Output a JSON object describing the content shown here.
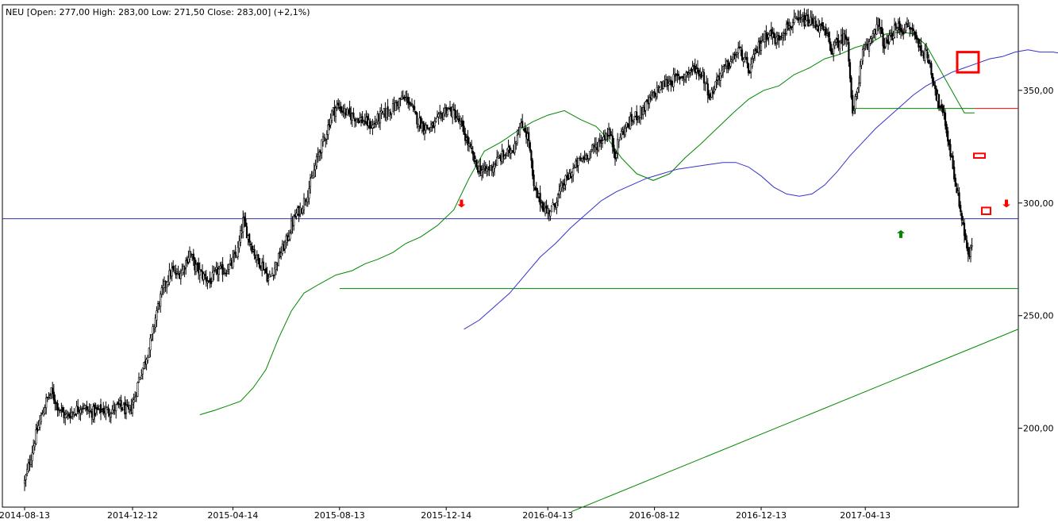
{
  "chart_data": {
    "type": "candlestick",
    "header": "NEU [Open: 277,00  High: 283,00  Low: 271,50  Close: 283,00]  (+2,1%)",
    "ylim": [
      165,
      388
    ],
    "y_ticks": [
      {
        "value": 200,
        "label": "200,00"
      },
      {
        "value": 250,
        "label": "250,00"
      },
      {
        "value": 300,
        "label": "300,00"
      },
      {
        "value": 350,
        "label": "350,00"
      }
    ],
    "x_ticks": [
      {
        "index": 0,
        "label": "2014-08-13"
      },
      {
        "index": 85,
        "label": "2014-12-12"
      },
      {
        "index": 164,
        "label": "2015-04-14"
      },
      {
        "index": 248,
        "label": "2015-08-13"
      },
      {
        "index": 332,
        "label": "2015-12-14"
      },
      {
        "index": 412,
        "label": "2016-04-13"
      },
      {
        "index": 496,
        "label": "2016-08-12"
      },
      {
        "index": 580,
        "label": "2016-12-13"
      },
      {
        "index": 662,
        "label": "2017-04-13"
      }
    ],
    "total_bars": 753,
    "price_anchors": [
      [
        0,
        176
      ],
      [
        3,
        183
      ],
      [
        8,
        195
      ],
      [
        12,
        203
      ],
      [
        17,
        212
      ],
      [
        21,
        216
      ],
      [
        26,
        210
      ],
      [
        32,
        205
      ],
      [
        40,
        208
      ],
      [
        45,
        210
      ],
      [
        52,
        207
      ],
      [
        60,
        208
      ],
      [
        68,
        208
      ],
      [
        75,
        210
      ],
      [
        82,
        207
      ],
      [
        86,
        212
      ],
      [
        90,
        222
      ],
      [
        95,
        230
      ],
      [
        100,
        240
      ],
      [
        104,
        252
      ],
      [
        108,
        260
      ],
      [
        112,
        266
      ],
      [
        116,
        270
      ],
      [
        120,
        268
      ],
      [
        124,
        270
      ],
      [
        130,
        278
      ],
      [
        134,
        272
      ],
      [
        140,
        268
      ],
      [
        146,
        265
      ],
      [
        152,
        270
      ],
      [
        158,
        270
      ],
      [
        163,
        273
      ],
      [
        168,
        279
      ],
      [
        172,
        292
      ],
      [
        178,
        282
      ],
      [
        183,
        275
      ],
      [
        188,
        272
      ],
      [
        192,
        266
      ],
      [
        196,
        270
      ],
      [
        201,
        277
      ],
      [
        206,
        283
      ],
      [
        210,
        290
      ],
      [
        214,
        295
      ],
      [
        218,
        298
      ],
      [
        223,
        305
      ],
      [
        227,
        312
      ],
      [
        232,
        323
      ],
      [
        237,
        330
      ],
      [
        242,
        340
      ],
      [
        246,
        343
      ],
      [
        251,
        341
      ],
      [
        256,
        339
      ],
      [
        262,
        338
      ],
      [
        268,
        336
      ],
      [
        274,
        334
      ],
      [
        279,
        338
      ],
      [
        284,
        340
      ],
      [
        290,
        342
      ],
      [
        296,
        346
      ],
      [
        302,
        346
      ],
      [
        308,
        338
      ],
      [
        314,
        334
      ],
      [
        320,
        333
      ],
      [
        326,
        337
      ],
      [
        332,
        342
      ],
      [
        338,
        340
      ],
      [
        344,
        334
      ],
      [
        350,
        325
      ],
      [
        356,
        316
      ],
      [
        362,
        314
      ],
      [
        368,
        316
      ],
      [
        374,
        320
      ],
      [
        380,
        322
      ],
      [
        385,
        325
      ],
      [
        389,
        333
      ],
      [
        393,
        334
      ],
      [
        397,
        328
      ],
      [
        401,
        306
      ],
      [
        406,
        301
      ],
      [
        411,
        296
      ],
      [
        416,
        298
      ],
      [
        420,
        303
      ],
      [
        425,
        309
      ],
      [
        430,
        313
      ],
      [
        436,
        318
      ],
      [
        442,
        321
      ],
      [
        448,
        324
      ],
      [
        454,
        328
      ],
      [
        460,
        332
      ],
      [
        465,
        322
      ],
      [
        469,
        330
      ],
      [
        474,
        334
      ],
      [
        480,
        338
      ],
      [
        486,
        341
      ],
      [
        492,
        345
      ],
      [
        498,
        350
      ],
      [
        504,
        353
      ],
      [
        512,
        355
      ],
      [
        520,
        357
      ],
      [
        528,
        360
      ],
      [
        534,
        357
      ],
      [
        540,
        347
      ],
      [
        546,
        356
      ],
      [
        552,
        360
      ],
      [
        558,
        364
      ],
      [
        562,
        368
      ],
      [
        566,
        365
      ],
      [
        570,
        358
      ],
      [
        574,
        364
      ],
      [
        580,
        372
      ],
      [
        586,
        376
      ],
      [
        592,
        372
      ],
      [
        598,
        377
      ],
      [
        606,
        380
      ],
      [
        614,
        381
      ],
      [
        622,
        380
      ],
      [
        630,
        376
      ],
      [
        636,
        368
      ],
      [
        640,
        371
      ],
      [
        644,
        373
      ],
      [
        648,
        374
      ],
      [
        652,
        338
      ],
      [
        656,
        352
      ],
      [
        660,
        366
      ],
      [
        664,
        369
      ],
      [
        668,
        376
      ],
      [
        672,
        380
      ],
      [
        676,
        371
      ],
      [
        680,
        371
      ],
      [
        684,
        376
      ],
      [
        688,
        378
      ],
      [
        692,
        377
      ],
      [
        696,
        378
      ],
      [
        700,
        376
      ],
      [
        703,
        372
      ],
      [
        706,
        368
      ],
      [
        709,
        366
      ],
      [
        712,
        364
      ],
      [
        715,
        356
      ],
      [
        718,
        348
      ],
      [
        721,
        342
      ],
      [
        724,
        338
      ],
      [
        727,
        329
      ],
      [
        730,
        319
      ],
      [
        733,
        309
      ],
      [
        736,
        300
      ],
      [
        739,
        290
      ],
      [
        742,
        280
      ],
      [
        744,
        275
      ],
      [
        746,
        282
      ]
    ],
    "ma_fast_anchors": [
      [
        138,
        206
      ],
      [
        150,
        208
      ],
      [
        160,
        210
      ],
      [
        170,
        212
      ],
      [
        180,
        218
      ],
      [
        190,
        226
      ],
      [
        200,
        240
      ],
      [
        210,
        252
      ],
      [
        220,
        260
      ],
      [
        232,
        264
      ],
      [
        245,
        268
      ],
      [
        258,
        270
      ],
      [
        268,
        273
      ],
      [
        278,
        275
      ],
      [
        290,
        278
      ],
      [
        300,
        282
      ],
      [
        312,
        285
      ],
      [
        325,
        290
      ],
      [
        338,
        297
      ],
      [
        350,
        311
      ],
      [
        362,
        323
      ],
      [
        375,
        327
      ],
      [
        388,
        332
      ],
      [
        400,
        336
      ],
      [
        412,
        339
      ],
      [
        425,
        341
      ],
      [
        438,
        337
      ],
      [
        450,
        334
      ],
      [
        460,
        328
      ],
      [
        470,
        320
      ],
      [
        482,
        313
      ],
      [
        495,
        310
      ],
      [
        508,
        313
      ],
      [
        520,
        320
      ],
      [
        532,
        326
      ],
      [
        545,
        333
      ],
      [
        558,
        340
      ],
      [
        570,
        346
      ],
      [
        582,
        350
      ],
      [
        594,
        352
      ],
      [
        606,
        357
      ],
      [
        618,
        360
      ],
      [
        630,
        364
      ],
      [
        642,
        366
      ],
      [
        654,
        369
      ],
      [
        666,
        371
      ],
      [
        678,
        375
      ],
      [
        690,
        376
      ],
      [
        700,
        375
      ],
      [
        710,
        370
      ],
      [
        720,
        360
      ],
      [
        730,
        350
      ],
      [
        740,
        340
      ],
      [
        748,
        340
      ]
    ],
    "ma_slow_anchors": [
      [
        346,
        244
      ],
      [
        358,
        248
      ],
      [
        370,
        254
      ],
      [
        382,
        260
      ],
      [
        394,
        268
      ],
      [
        406,
        276
      ],
      [
        418,
        282
      ],
      [
        430,
        289
      ],
      [
        442,
        295
      ],
      [
        454,
        301
      ],
      [
        466,
        305
      ],
      [
        478,
        308
      ],
      [
        490,
        311
      ],
      [
        502,
        313
      ],
      [
        514,
        315
      ],
      [
        526,
        316
      ],
      [
        538,
        317
      ],
      [
        550,
        318
      ],
      [
        560,
        318
      ],
      [
        570,
        316
      ],
      [
        580,
        312
      ],
      [
        590,
        307
      ],
      [
        600,
        304
      ],
      [
        610,
        303
      ],
      [
        620,
        304
      ],
      [
        630,
        308
      ],
      [
        640,
        314
      ],
      [
        650,
        321
      ],
      [
        660,
        327
      ],
      [
        670,
        333
      ],
      [
        680,
        338
      ],
      [
        690,
        343
      ],
      [
        700,
        348
      ],
      [
        710,
        352
      ],
      [
        720,
        355
      ],
      [
        730,
        358
      ],
      [
        740,
        360
      ],
      [
        750,
        362
      ],
      [
        760,
        364
      ],
      [
        770,
        365
      ],
      [
        780,
        367
      ],
      [
        790,
        368
      ],
      [
        800,
        367
      ],
      [
        810,
        367
      ],
      [
        820,
        366
      ],
      [
        830,
        365
      ],
      [
        840,
        363
      ],
      [
        848,
        361
      ],
      [
        856,
        358
      ],
      [
        864,
        353
      ]
    ],
    "horizontal_lines": [
      {
        "value": 293,
        "color": "#3333aa",
        "from": 0
      },
      {
        "value": 262,
        "color": "#008800",
        "from": 248
      },
      {
        "value": 342,
        "color": "#008800",
        "from": 1073,
        "to": 1228
      },
      {
        "value": 342,
        "color": "#ff0000",
        "from": 1228
      }
    ],
    "trendline": {
      "from": [
        720,
        163
      ],
      "to": [
        1283,
        244
      ],
      "color": "#008800"
    },
    "markers": [
      {
        "type": "arrow-down",
        "bar": 344,
        "value": 298,
        "color": "#ff0000"
      },
      {
        "type": "arrow-up",
        "bar": 690,
        "value": 288,
        "color": "#008800"
      },
      {
        "type": "arrow-down",
        "bar": 1268,
        "value": 298,
        "color": "#ff0000"
      }
    ],
    "boxes": [
      {
        "x0": 1206,
        "x1": 1233,
        "y0": 367,
        "y1": 358,
        "color": "#ff0000",
        "stroke": 3
      },
      {
        "x0": 1227,
        "x1": 1241,
        "y0": 322,
        "y1": 320,
        "color": "#ff0000",
        "stroke": 2
      },
      {
        "x0": 1237,
        "x1": 1248,
        "y0": 298,
        "y1": 295,
        "color": "#ff0000",
        "stroke": 2
      }
    ],
    "colors": {
      "candle": "#000000",
      "ma_fast": "#008800",
      "ma_slow": "#3333cc",
      "axis": "#000000"
    }
  }
}
